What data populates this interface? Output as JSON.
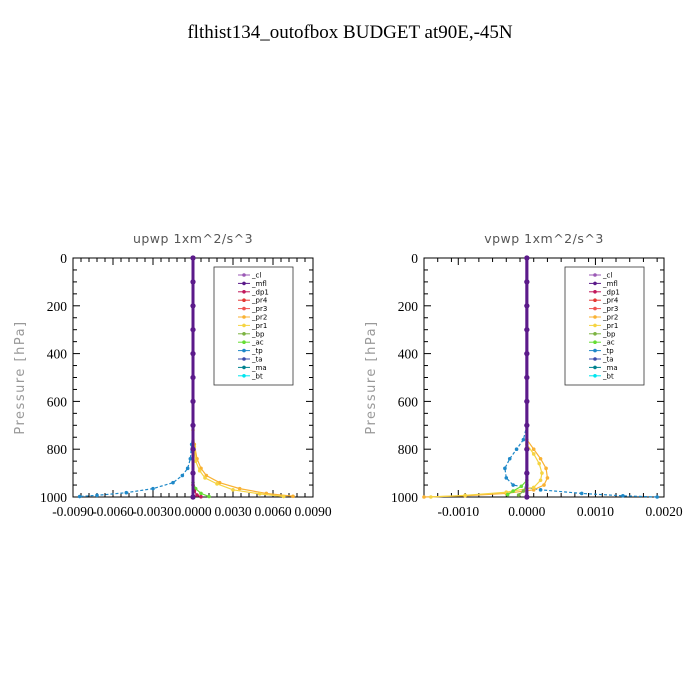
{
  "title": "flthist134_outofbox  BUDGET at90E,-45N",
  "colors": {
    "_cl": "#9b59b6",
    "_mfl": "#5b1a8a",
    "_dp1": "#c2185b",
    "_pr4": "#e53935",
    "_pr3": "#ef5350",
    "_pr2": "#f9b233",
    "_pr1": "#f5d442",
    "_bp": "#7cb342",
    "_ac": "#66dd33",
    "_tp": "#1e88c8",
    "_ta": "#3949ab",
    "_ma": "#00838f",
    "_bt": "#00e5ee"
  },
  "chart_data": [
    {
      "type": "line",
      "title": "upwp   1xm^2/s^3",
      "ylabel": "Pressure [hPa]",
      "xlim": [
        -0.009,
        0.009
      ],
      "ylim": [
        1000,
        0
      ],
      "xticks": [
        "-0.0090",
        "-0.0060",
        "-0.0030",
        "0.0000",
        "0.0030",
        "0.0060",
        "0.0090"
      ],
      "yticks": [
        "0",
        "200",
        "400",
        "600",
        "800",
        "1000"
      ],
      "legend": [
        "_cl",
        "_mfl",
        "_dp1",
        "_pr4",
        "_pr3",
        "_pr2",
        "_pr1",
        "_bp",
        "_ac",
        "_tp",
        "_ta",
        "_ma",
        "_bt"
      ],
      "legend_position": "top-right",
      "series": [
        {
          "name": "_tp",
          "x": [
            0,
            -0.0001,
            -0.0002,
            -0.0004,
            -0.0008,
            -0.0015,
            -0.003,
            -0.005,
            -0.0072,
            -0.0085
          ],
          "y": [
            700,
            780,
            840,
            880,
            910,
            940,
            965,
            982,
            993,
            998
          ]
        },
        {
          "name": "_pr2",
          "x": [
            0,
            0.0001,
            0.0003,
            0.0006,
            0.001,
            0.002,
            0.0035,
            0.0055,
            0.0075
          ],
          "y": [
            700,
            780,
            840,
            880,
            910,
            940,
            965,
            985,
            997
          ]
        },
        {
          "name": "_pr1",
          "x": [
            0,
            0.0001,
            0.0002,
            0.0005,
            0.0009,
            0.0018,
            0.003,
            0.005,
            0.0068
          ],
          "y": [
            720,
            790,
            850,
            890,
            920,
            945,
            970,
            987,
            998
          ]
        },
        {
          "name": "_ac",
          "x": [
            0,
            0.0002,
            0.0006,
            0.0012
          ],
          "y": [
            940,
            965,
            985,
            998
          ]
        },
        {
          "name": "_dp1",
          "x": [
            0,
            0.0001,
            0.0003,
            0.0006
          ],
          "y": [
            950,
            975,
            992,
            999
          ]
        },
        {
          "name": "_cl",
          "x": [
            0,
            0,
            0,
            0,
            0,
            0,
            0,
            0,
            0,
            0,
            0
          ],
          "y": [
            0,
            100,
            200,
            300,
            400,
            500,
            600,
            700,
            800,
            900,
            1000
          ]
        },
        {
          "name": "_mfl",
          "x": [
            0,
            0,
            0,
            0,
            0,
            0,
            0,
            0,
            0,
            0,
            0
          ],
          "y": [
            0,
            100,
            200,
            300,
            400,
            500,
            600,
            700,
            800,
            900,
            1000
          ]
        }
      ]
    },
    {
      "type": "line",
      "title": "vpwp   1xm^2/s^3",
      "ylabel": "Pressure [hPa]",
      "xlim": [
        -0.0015,
        0.002
      ],
      "ylim": [
        1000,
        0
      ],
      "xticks": [
        "-0.0010",
        "0.0000",
        "0.0010",
        "0.0020"
      ],
      "xtick_values": [
        -0.001,
        0,
        0.001,
        0.002
      ],
      "yticks": [
        "0",
        "200",
        "400",
        "600",
        "800",
        "1000"
      ],
      "legend": [
        "_cl",
        "_mfl",
        "_dp1",
        "_pr4",
        "_pr3",
        "_pr2",
        "_pr1",
        "_bp",
        "_ac",
        "_tp",
        "_ta",
        "_ma",
        "_bt"
      ],
      "legend_position": "top-right",
      "series": [
        {
          "name": "_tp",
          "x": [
            0,
            -5e-05,
            -0.00015,
            -0.00025,
            -0.00032,
            -0.0003,
            -0.0002,
            0.0002,
            0.0008,
            0.0014,
            0.0019
          ],
          "y": [
            700,
            760,
            800,
            840,
            880,
            920,
            950,
            970,
            985,
            995,
            1000
          ]
        },
        {
          "name": "_pr2",
          "x": [
            0,
            0.0001,
            0.0002,
            0.00028,
            0.0003,
            0.00025,
            0.0001,
            -0.0003,
            -0.0009,
            -0.0015
          ],
          "y": [
            760,
            800,
            840,
            880,
            920,
            950,
            970,
            985,
            995,
            1000
          ]
        },
        {
          "name": "_pr1",
          "x": [
            0,
            0.0001,
            0.00018,
            0.00022,
            0.0002,
            0.0001,
            -0.0003,
            -0.0009,
            -0.0014
          ],
          "y": [
            780,
            820,
            860,
            900,
            930,
            960,
            980,
            993,
            1000
          ]
        },
        {
          "name": "_ac",
          "x": [
            0,
            -8e-05,
            -0.0002,
            -0.00028
          ],
          "y": [
            930,
            955,
            975,
            990
          ]
        },
        {
          "name": "_bp",
          "x": [
            0,
            -5e-05,
            -0.00012
          ],
          "y": [
            950,
            975,
            992
          ]
        },
        {
          "name": "_cl",
          "x": [
            0,
            0,
            0,
            0,
            0,
            0,
            0,
            0,
            0,
            0,
            0
          ],
          "y": [
            0,
            100,
            200,
            300,
            400,
            500,
            600,
            700,
            800,
            900,
            1000
          ]
        },
        {
          "name": "_mfl",
          "x": [
            0,
            0,
            0,
            0,
            0,
            0,
            0,
            0,
            0,
            0,
            0
          ],
          "y": [
            0,
            100,
            200,
            300,
            400,
            500,
            600,
            700,
            800,
            900,
            1000
          ]
        }
      ]
    }
  ]
}
